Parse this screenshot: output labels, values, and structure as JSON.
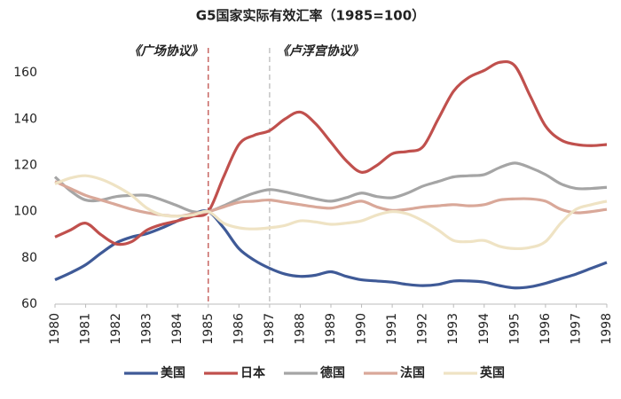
{
  "chart_data": {
    "type": "line",
    "title": "G5国家实际有效汇率（1985=100）",
    "x": [
      1980,
      1980.5,
      1981,
      1981.5,
      1982,
      1982.5,
      1983,
      1983.5,
      1984,
      1984.5,
      1985,
      1985.5,
      1986,
      1986.5,
      1987,
      1987.5,
      1988,
      1988.5,
      1989,
      1989.5,
      1990,
      1990.5,
      1991,
      1991.5,
      1992,
      1992.5,
      1993,
      1993.5,
      1994,
      1994.5,
      1995,
      1995.5,
      1996,
      1996.5,
      1997,
      1997.5,
      1998
    ],
    "xlim": [
      1980,
      1998
    ],
    "xticks": [
      1980,
      1981,
      1982,
      1983,
      1984,
      1985,
      1986,
      1987,
      1988,
      1989,
      1990,
      1991,
      1992,
      1993,
      1994,
      1995,
      1996,
      1997,
      1998
    ],
    "ylim": [
      60,
      170
    ],
    "yticks": [
      60,
      80,
      100,
      120,
      140,
      160
    ],
    "grid": false,
    "legend": "bottom",
    "series": [
      {
        "name": "美国",
        "color": "#3f5a97",
        "values": [
          70.5,
          73.5,
          77,
          82,
          86.5,
          89,
          90.5,
          93,
          96,
          99,
          100,
          93,
          84,
          79,
          75.5,
          73,
          72,
          72.5,
          74,
          72,
          70.5,
          70,
          69.5,
          68.5,
          68,
          68.5,
          70,
          70,
          69.5,
          68,
          67,
          67.5,
          69,
          71,
          73,
          75.5,
          78
        ]
      },
      {
        "name": "日本",
        "color": "#c0504d",
        "values": [
          89,
          92,
          95,
          90,
          86,
          87,
          92,
          94.5,
          96,
          98,
          100,
          115,
          129,
          133,
          135,
          140,
          143,
          138,
          130,
          122,
          117,
          120,
          125,
          126,
          128,
          140,
          152,
          158,
          161,
          164.5,
          163,
          150,
          137,
          131,
          129,
          128.5,
          129
        ]
      },
      {
        "name": "德国",
        "color": "#a5a5a5",
        "values": [
          115,
          109,
          105,
          105,
          106.5,
          107,
          107,
          105,
          102.5,
          100,
          100,
          102.5,
          105.5,
          108,
          109.5,
          108.5,
          107,
          105.5,
          104.5,
          106,
          108,
          106.5,
          106,
          108,
          111,
          113,
          115,
          115.5,
          116,
          119,
          121,
          119,
          116,
          112,
          110,
          110,
          110.5
        ]
      },
      {
        "name": "法国",
        "color": "#d9a899",
        "values": [
          113,
          110,
          107,
          105,
          103,
          101,
          99.5,
          98.5,
          98,
          99,
          100,
          102,
          104,
          104.5,
          105,
          104,
          103,
          102,
          101.5,
          103,
          104.5,
          102,
          100.5,
          101,
          102,
          102.5,
          103,
          102.5,
          103,
          105,
          105.5,
          105.5,
          104.5,
          101,
          99.5,
          100,
          101
        ]
      },
      {
        "name": "英国",
        "color": "#efe3c4",
        "values": [
          112,
          114.5,
          115.5,
          114,
          111,
          107,
          101.5,
          98.5,
          98,
          98.5,
          100,
          95,
          93,
          92.5,
          93,
          94,
          96,
          95.5,
          94.5,
          95,
          96,
          98.5,
          100,
          99,
          96,
          92,
          87.5,
          87,
          87.5,
          85,
          84,
          84.5,
          87,
          95,
          101,
          103,
          104.5
        ]
      }
    ],
    "vlines": [
      {
        "x": 1985,
        "label": "《广场协议》",
        "color": "#c0504d"
      },
      {
        "x": 1987,
        "label": "《卢浮宫协议》",
        "color": "#bbbbbb"
      }
    ]
  }
}
